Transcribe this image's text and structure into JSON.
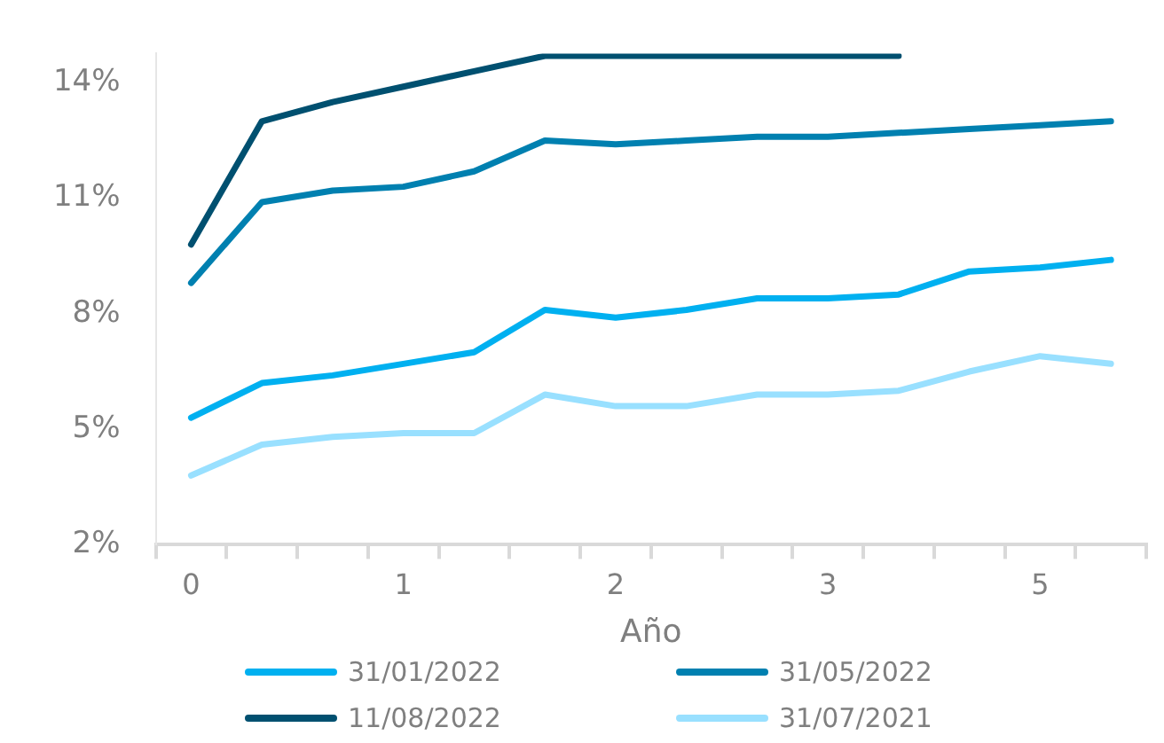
{
  "chart_data": {
    "type": "line",
    "xlabel": "Año",
    "categories": [
      "0",
      null,
      null,
      "1",
      null,
      null,
      "2",
      null,
      null,
      "3",
      null,
      null,
      "5",
      null
    ],
    "series": [
      {
        "name": "31/01/2022",
        "color": "#00b0f0",
        "values": [
          5.3,
          6.2,
          6.4,
          6.7,
          7.0,
          8.1,
          7.9,
          8.1,
          8.4,
          8.4,
          8.5,
          9.1,
          9.2,
          9.4
        ]
      },
      {
        "name": "31/05/2022",
        "color": "#0080b0",
        "values": [
          8.8,
          10.9,
          11.2,
          11.3,
          11.7,
          12.5,
          12.4,
          12.5,
          12.6,
          12.6,
          12.7,
          12.8,
          12.9,
          13.0
        ]
      },
      {
        "name": "11/08/2022",
        "color": "#005070",
        "values": [
          9.8,
          13.0,
          13.5,
          13.9,
          14.3,
          14.7,
          14.7,
          14.7,
          14.7,
          14.7,
          14.7,
          null,
          null,
          null
        ]
      },
      {
        "name": "31/07/2021",
        "color": "#99e0ff",
        "values": [
          3.8,
          4.6,
          4.8,
          4.9,
          4.9,
          5.9,
          5.6,
          5.6,
          5.9,
          5.9,
          6.0,
          6.5,
          6.9,
          6.7
        ]
      }
    ],
    "ylim": [
      2,
      14.76
    ],
    "yticks": [
      {
        "value": 2,
        "label": "2%"
      },
      {
        "value": 5,
        "label": "5%"
      },
      {
        "value": 8,
        "label": "8%"
      },
      {
        "value": 11,
        "label": "11%"
      },
      {
        "value": 14,
        "label": "14%"
      }
    ],
    "grid": false,
    "legend": "bottom",
    "marker": "none",
    "line_style": "solid"
  }
}
